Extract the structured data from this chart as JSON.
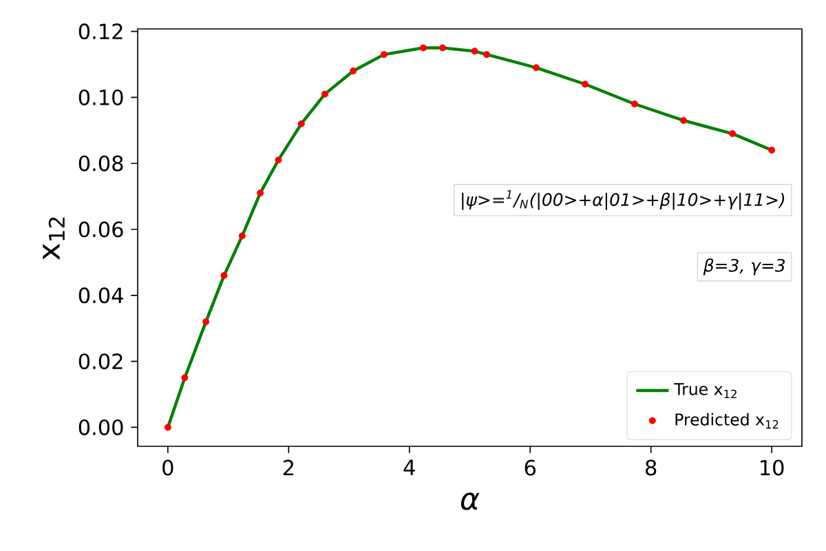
{
  "chart_data": {
    "type": "line",
    "xlabel": "*α*",
    "ylabel": "x$_{12}$",
    "x": [
      0,
      0.28,
      0.63,
      0.93,
      1.23,
      1.53,
      1.83,
      2.21,
      2.6,
      3.07,
      3.58,
      4.23,
      4.55,
      5.08,
      5.28,
      6.1,
      6.91,
      7.73,
      8.54,
      9.35,
      10
    ],
    "series": [
      {
        "name": "True x$_{12}$",
        "color": "#008000",
        "marker": "none",
        "line_style": "solid",
        "values": [
          0,
          0.015,
          0.032,
          0.046,
          0.058,
          0.071,
          0.081,
          0.092,
          0.101,
          0.108,
          0.113,
          0.115,
          0.115,
          0.114,
          0.113,
          0.109,
          0.104,
          0.098,
          0.093,
          0.089,
          0.084
        ]
      },
      {
        "name": "Predicted x$_{12}$",
        "type": "scatter",
        "color": "#ff0000",
        "marker": "circle",
        "values": [
          0,
          0.015,
          0.032,
          0.046,
          0.058,
          0.071,
          0.081,
          0.092,
          0.101,
          0.108,
          0.113,
          0.115,
          0.115,
          0.114,
          0.113,
          0.109,
          0.104,
          0.098,
          0.093,
          0.089,
          0.084
        ]
      }
    ],
    "xlim": [
      -0.5,
      10.5
    ],
    "ylim": [
      -0.00575,
      0.12075
    ],
    "xticks": [
      0,
      2,
      4,
      6,
      8,
      10
    ],
    "yticks": [
      {
        "value": 0,
        "label": "0.00"
      },
      {
        "value": 0.02,
        "label": "0.02"
      },
      {
        "value": 0.04,
        "label": "0.04"
      },
      {
        "value": 0.06,
        "label": "0.06"
      },
      {
        "value": 0.08,
        "label": "0.08"
      },
      {
        "value": 0.1,
        "label": "0.10"
      },
      {
        "value": 0.12,
        "label": "0.12"
      }
    ],
    "annotations": [
      "|ψ>=$^{1}$/$_{N}$(|00>+α|01>+β|10>+γ|11>)",
      "β=3, γ=3"
    ],
    "legend": "bottom right"
  }
}
